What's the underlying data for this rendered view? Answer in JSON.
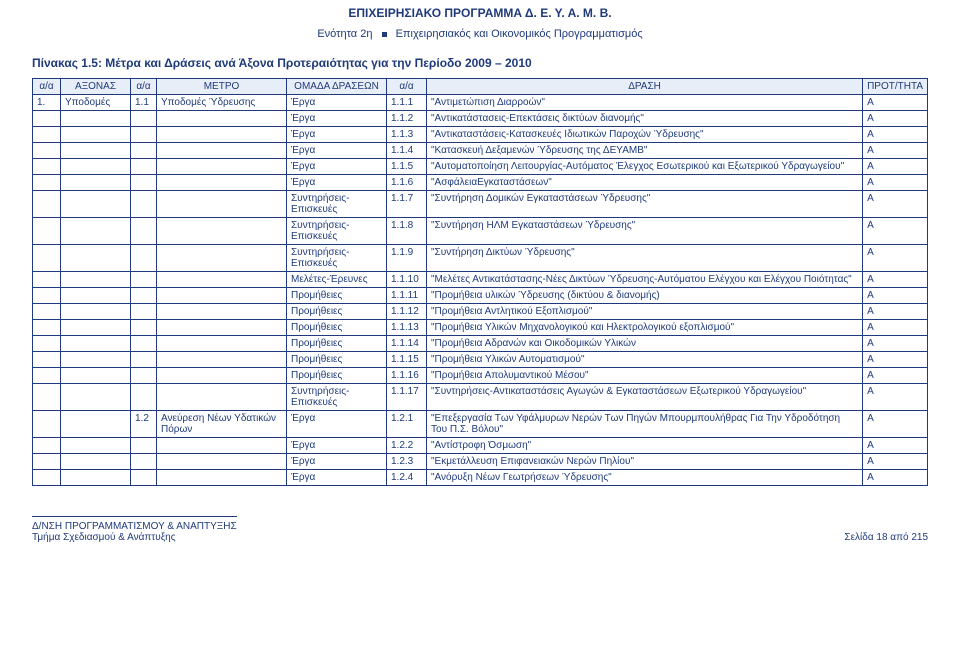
{
  "header": {
    "title": "ΕΠΙΧΕΙΡΗΣΙΑΚΟ ΠΡΟΓΡΑΜΜΑ Δ. Ε. Υ. Α. Μ. Β.",
    "subtitle_prefix": "Ενότητα 2η",
    "subtitle_rest": "Επιχειρησιακός και Οικονομικός Προγραμματισμός"
  },
  "section_title": "Πίνακας 1.5: Μέτρα και Δράσεις ανά Άξονα Προτεραιότητας για την Περίοδο 2009 – 2010",
  "columns": [
    "α/α",
    "ΑΞΟΝΑΣ",
    "α/α",
    "ΜΕΤΡΟ",
    "ΟΜΑΔΑ ΔΡΑΣΕΩΝ",
    "α/α",
    "ΔΡΑΣΗ",
    "ΠΡΟΤ/ΤΗΤΑ"
  ],
  "rows": [
    {
      "c": [
        "1.",
        "Υποδομές",
        "1.1",
        "Υποδομές Ύδρευσης",
        "Έργα",
        "1.1.1",
        "\"Αντιμετώπιση Διαρροών\"",
        "Α"
      ]
    },
    {
      "c": [
        "",
        "",
        "",
        "",
        "Έργα",
        "1.1.2",
        "\"Αντικατάστασεις-Επεκτάσεις δικτύων διανομής\"",
        "Α"
      ]
    },
    {
      "c": [
        "",
        "",
        "",
        "",
        "Έργα",
        "1.1.3",
        "\"Αντικαταστάσεις-Κατασκευές Ιδιωτικών Παροχών Ύδρευσης\"",
        "Α"
      ]
    },
    {
      "c": [
        "",
        "",
        "",
        "",
        "Έργα",
        "1.1.4",
        "\"Κατασκευή Δεξαμενών Ύδρευσης της ΔΕΥΑΜΒ\"",
        "Α"
      ]
    },
    {
      "c": [
        "",
        "",
        "",
        "",
        "Έργα",
        "1.1.5",
        "\"Αυτοματοποίηση Λειτουργίας-Αυτόματος Έλεγχος Εσωτερικού και Εξωτερικού Υδραγωγείου\"",
        "Α"
      ]
    },
    {
      "c": [
        "",
        "",
        "",
        "",
        "Έργα",
        "1.1.6",
        "\"ΑσφάλειαΕγκαταστάσεων\"",
        "Α"
      ]
    },
    {
      "c": [
        "",
        "",
        "",
        "",
        "Συντηρήσεις-Επισκευές",
        "1.1.7",
        "\"Συντήρηση Δομικών Εγκαταστάσεων Ύδρευσης\"",
        "Α"
      ]
    },
    {
      "c": [
        "",
        "",
        "",
        "",
        "Συντηρήσεις-Επισκευές",
        "1.1.8",
        "\"Συντήρηση ΗΛΜ Εγκαταστάσεων Ύδρευσης\"",
        "Α"
      ]
    },
    {
      "c": [
        "",
        "",
        "",
        "",
        "Συντηρήσεις-Επισκευές",
        "1.1.9",
        "\"Συντήρηση Δικτύων Ύδρευσης\"",
        "Α"
      ]
    },
    {
      "c": [
        "",
        "",
        "",
        "",
        "Μελέτες-Έρευνες",
        "1.1.10",
        "\"Μελέτες Αντικατάστασης-Νέες Δικτύων Ύδρευσης-Αυτόματου Ελέγχου και Ελέγχου Ποιότητας\"",
        "Α"
      ]
    },
    {
      "c": [
        "",
        "",
        "",
        "",
        "Προμήθειες",
        "1.1.11",
        "\"Προμήθεια υλικών Ύδρευσης (δικτύου & διανομής)",
        "Α"
      ]
    },
    {
      "c": [
        "",
        "",
        "",
        "",
        "Προμήθειες",
        "1.1.12",
        "\"Προμήθεια Αντλητικού Εξοπλισμού\"",
        "Α"
      ]
    },
    {
      "c": [
        "",
        "",
        "",
        "",
        "Προμήθειες",
        "1.1.13",
        "\"Προμήθεια Υλικών Μηχανολογικού και Ηλεκτρολογικού εξοπλισμού\"",
        "Α"
      ]
    },
    {
      "c": [
        "",
        "",
        "",
        "",
        "Προμήθειες",
        "1.1.14",
        "\"Προμήθεια Αδρανών και Οικοδομικών Υλικών",
        "Α"
      ]
    },
    {
      "c": [
        "",
        "",
        "",
        "",
        "Προμήθειες",
        "1.1.15",
        "\"Προμήθεια Υλικών Αυτοματισμού\"",
        "Α"
      ]
    },
    {
      "c": [
        "",
        "",
        "",
        "",
        "Προμήθειες",
        "1.1.16",
        "\"Προμήθεια Απολυμαντικού Μέσου\"",
        "Α"
      ]
    },
    {
      "c": [
        "",
        "",
        "",
        "",
        "Συντηρήσεις-Επισκευές",
        "1.1.17",
        "\"Συντηρήσεις-Αντικαταστάσεις Αγωγών & Εγκαταστάσεων Εξωτερικού Υδραγωγείου\"",
        "Α"
      ]
    },
    {
      "c": [
        "",
        "",
        "1.2",
        "Ανεύρεση Νέων Υδατικών Πόρων",
        "Έργα",
        "1.2.1",
        "\"Επεξεργασία Των  Υφάλμυρων Νερών Των Πηγών  Μπουρμπουλήθρας Για Την Υδροδότηση Του Π.Σ. Βόλου\"",
        "Α"
      ]
    },
    {
      "c": [
        "",
        "",
        "",
        "",
        "Έργα",
        "1.2.2",
        "\"Αντίστροφη Όσμωση\"",
        "Α"
      ]
    },
    {
      "c": [
        "",
        "",
        "",
        "",
        "Έργα",
        "1.2.3",
        "\"Εκμετάλλευση Επιφανειακών Νερών Πηλίου\"",
        "Α"
      ]
    },
    {
      "c": [
        "",
        "",
        "",
        "",
        "Έργα",
        "1.2.4",
        "\"Ανόρυξη Νέων Γεωτρήσεων Ύδρευσης\"",
        "Α"
      ]
    }
  ],
  "footer": {
    "left1": "Δ/ΝΣΗ ΠΡΟΓΡΑΜΜΑΤΙΣΜΟΥ & ΑΝΑΠΤΥΞΗΣ",
    "left2": "Τμήμα Σχεδιασμού & Ανάπτυξης",
    "page": "Σελίδα 18 από 215"
  }
}
